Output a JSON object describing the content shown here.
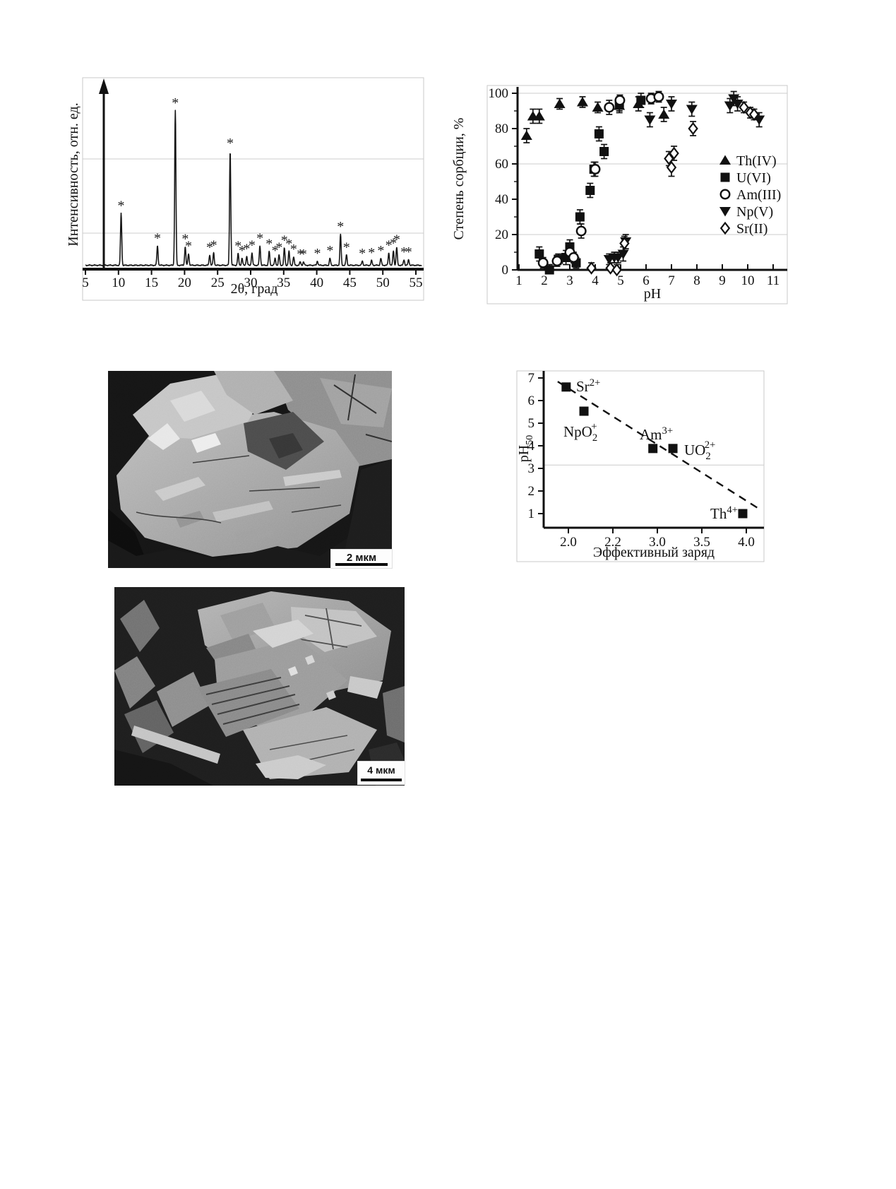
{
  "figure": {
    "background": "#ffffff"
  },
  "chart_data": [
    {
      "id": "xrd",
      "type": "line",
      "title": "",
      "xlabel": "2θ, град",
      "ylabel": "Интенсивность, отн. ед.",
      "xlim": [
        5,
        56
      ],
      "x_ticks": [
        5,
        10,
        15,
        20,
        25,
        30,
        35,
        40,
        45,
        50,
        55
      ],
      "grid": "horizontal",
      "peak_marker": "*",
      "peaks": [
        [
          10.4,
          0.335
        ],
        [
          15.9,
          0.125
        ],
        [
          18.6,
          1.0
        ],
        [
          20.1,
          0.12
        ],
        [
          20.6,
          0.075
        ],
        [
          23.8,
          0.067
        ],
        [
          24.4,
          0.08
        ],
        [
          26.9,
          0.74
        ],
        [
          28.1,
          0.075
        ],
        [
          28.7,
          0.045
        ],
        [
          29.4,
          0.058
        ],
        [
          30.2,
          0.08
        ],
        [
          31.4,
          0.125
        ],
        [
          32.8,
          0.09
        ],
        [
          33.7,
          0.045
        ],
        [
          34.3,
          0.067
        ],
        [
          35.1,
          0.112
        ],
        [
          35.8,
          0.09
        ],
        [
          36.5,
          0.054
        ],
        [
          37.5,
          0.022
        ],
        [
          38.0,
          0.022
        ],
        [
          40.1,
          0.027
        ],
        [
          42.0,
          0.045
        ],
        [
          43.6,
          0.2
        ],
        [
          44.5,
          0.067
        ],
        [
          46.9,
          0.027
        ],
        [
          48.3,
          0.031
        ],
        [
          49.7,
          0.045
        ],
        [
          50.9,
          0.08
        ],
        [
          51.6,
          0.094
        ],
        [
          52.1,
          0.116
        ],
        [
          53.2,
          0.036
        ],
        [
          53.9,
          0.036
        ]
      ]
    },
    {
      "id": "sorption",
      "type": "scatter",
      "title": "",
      "xlabel": "pH",
      "ylabel": "Степень сорбции, %",
      "xlim": [
        1,
        11
      ],
      "ylim": [
        0,
        100
      ],
      "x_ticks": [
        1,
        2,
        3,
        4,
        5,
        6,
        7,
        8,
        9,
        10,
        11
      ],
      "y_ticks": [
        0,
        20,
        40,
        60,
        80,
        100
      ],
      "grid_y": [
        20,
        60,
        100
      ],
      "legend_position": "right-inside",
      "series": [
        {
          "name": "Th(IV)",
          "marker": "triangle-up",
          "fill": "#111111",
          "points": [
            [
              1.3,
              76,
              4
            ],
            [
              1.55,
              87,
              4
            ],
            [
              1.8,
              87,
              4
            ],
            [
              2.6,
              94,
              3
            ],
            [
              3.5,
              95,
              3
            ],
            [
              4.1,
              92,
              3
            ],
            [
              4.95,
              93,
              4
            ],
            [
              5.7,
              94,
              4
            ],
            [
              6.7,
              88,
              4
            ]
          ]
        },
        {
          "name": "U(VI)",
          "marker": "square",
          "fill": "#111111",
          "points": [
            [
              1.8,
              9,
              4
            ],
            [
              2.2,
              0,
              3
            ],
            [
              2.55,
              6,
              3
            ],
            [
              2.85,
              7,
              4
            ],
            [
              3.0,
              13,
              4
            ],
            [
              3.25,
              4,
              3
            ],
            [
              3.4,
              30,
              4
            ],
            [
              3.8,
              45,
              4
            ],
            [
              3.95,
              57,
              4
            ],
            [
              4.15,
              77,
              4
            ],
            [
              4.35,
              67,
              4
            ],
            [
              4.95,
              94,
              4
            ],
            [
              5.8,
              96,
              4
            ]
          ]
        },
        {
          "name": "Am(III)",
          "marker": "circle",
          "fill": "#ffffff",
          "points": [
            [
              1.95,
              4,
              3
            ],
            [
              2.5,
              5,
              3
            ],
            [
              3.0,
              10,
              3
            ],
            [
              3.15,
              7,
              3
            ],
            [
              3.45,
              22,
              4
            ],
            [
              4.0,
              57,
              4
            ],
            [
              4.55,
              92,
              4
            ],
            [
              4.97,
              96,
              3
            ],
            [
              6.2,
              97,
              3
            ],
            [
              6.5,
              98,
              3
            ]
          ]
        },
        {
          "name": "Np(V)",
          "marker": "triangle-down",
          "fill": "#111111",
          "points": [
            [
              4.55,
              6,
              3
            ],
            [
              4.75,
              7,
              3
            ],
            [
              4.9,
              7,
              3
            ],
            [
              5.1,
              9,
              4
            ],
            [
              5.2,
              16,
              4
            ],
            [
              6.15,
              85,
              4
            ],
            [
              7.0,
              94,
              4
            ],
            [
              7.8,
              91,
              4
            ],
            [
              9.3,
              93,
              4
            ],
            [
              9.45,
              97,
              4
            ],
            [
              9.6,
              94,
              4
            ],
            [
              10.45,
              85,
              4
            ]
          ]
        },
        {
          "name": "Sr(II)",
          "marker": "diamond",
          "fill": "#ffffff",
          "points": [
            [
              3.85,
              1,
              3
            ],
            [
              4.6,
              1,
              3
            ],
            [
              4.85,
              0,
              3
            ],
            [
              5.15,
              15,
              4
            ],
            [
              6.9,
              63,
              4
            ],
            [
              7.1,
              66,
              4
            ],
            [
              7.0,
              58,
              5
            ],
            [
              7.85,
              80,
              4
            ],
            [
              9.85,
              92,
              3
            ],
            [
              10.1,
              89,
              3
            ],
            [
              10.25,
              88,
              3
            ]
          ]
        }
      ]
    },
    {
      "id": "ph50",
      "type": "scatter",
      "title": "",
      "xlabel": "Эффективный заряд",
      "ylabel_parts": {
        "base": "pH",
        "sub": "50"
      },
      "x_tick_labels": [
        "2.0",
        "2.2",
        "3.0",
        "3.5",
        "4.0"
      ],
      "y_ticks": [
        1,
        2,
        3,
        4,
        5,
        6,
        7
      ],
      "grid_y_value": 3.15,
      "trendline": {
        "style": "dashed",
        "from": [
          -0.24,
          6.84
        ],
        "to": [
          4.28,
          1.22
        ]
      },
      "points": [
        {
          "x": -0.05,
          "y": 6.6,
          "label_parts": [
            {
              "t": "Sr"
            },
            {
              "sup": "2+"
            }
          ]
        },
        {
          "x": 0.35,
          "y": 5.53,
          "label_parts": [
            {
              "t": "NpO"
            },
            {
              "sub": "2"
            },
            {
              "sup": "+",
              "stack": true
            }
          ]
        },
        {
          "x": 1.9,
          "y": 3.88,
          "label_parts": [
            {
              "t": "Am"
            },
            {
              "sup": "3+"
            }
          ]
        },
        {
          "x": 2.35,
          "y": 3.88,
          "label_parts": [
            {
              "t": "UO"
            },
            {
              "sub": "2"
            },
            {
              "sup": "2+",
              "stack": true
            }
          ]
        },
        {
          "x": 3.92,
          "y": 1.0,
          "label_parts": [
            {
              "t": "Th"
            },
            {
              "sup": "4+"
            }
          ]
        }
      ]
    }
  ],
  "sem_images": [
    {
      "scale_label": "2 мкм"
    },
    {
      "scale_label": "4 мкм"
    }
  ]
}
